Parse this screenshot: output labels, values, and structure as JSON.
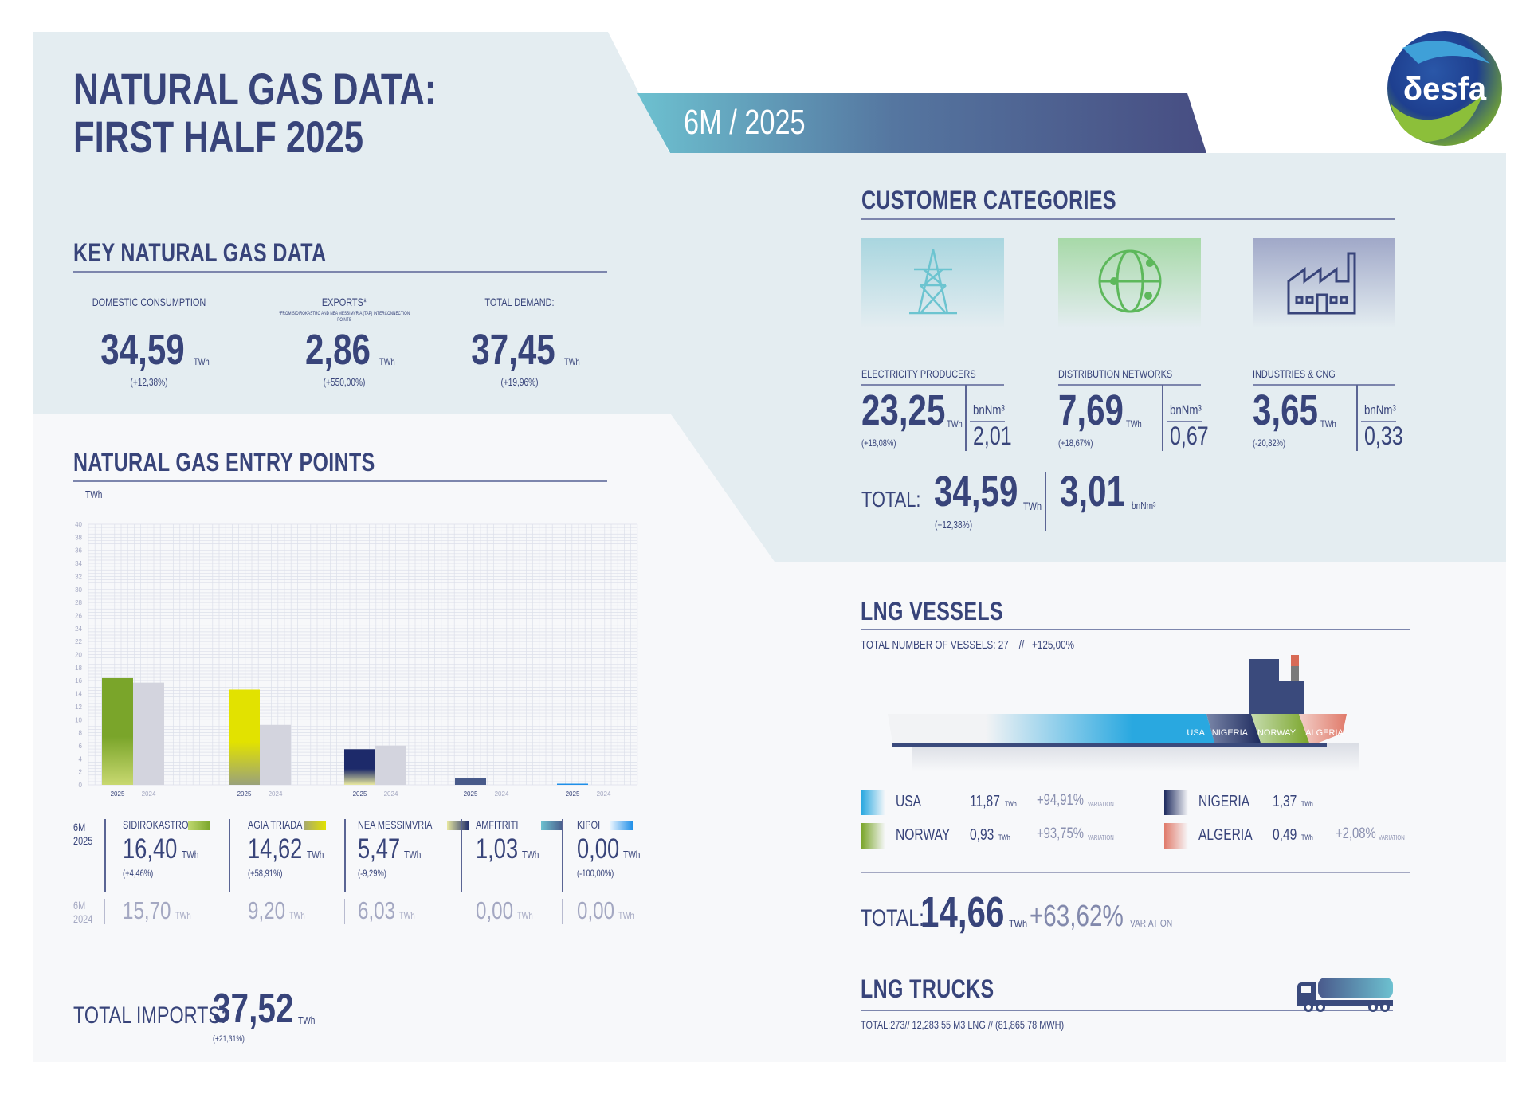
{
  "header": {
    "title_line1": "NATURAL GAS DATA:",
    "title_line2": "FIRST HALF 2025",
    "period_banner": "6M / 2025",
    "logo_text": "δesfa"
  },
  "colors": {
    "navy": "#38447a",
    "panel": "#e4edf1",
    "lower_bg": "#f7f8fa",
    "banner_start": "#6dc1d0",
    "banner_end": "#474d82",
    "sidirokastro": "#7aa52a",
    "agia_triada": "#e2e200",
    "nea_messimvria": "#1d2a6a",
    "amfitriti": "#485a8a",
    "kipoi": "#1f8fe8",
    "bar_2024": "#d3d4de",
    "usa": "#29a8e0",
    "nigeria": "#1d2a5e",
    "norway": "#7aa52a",
    "algeria": "#e07a6a"
  },
  "key_data": {
    "title": "KEY NATURAL GAS DATA",
    "items": [
      {
        "label": "DOMESTIC CONSUMPTION",
        "note": "",
        "value": "34,59",
        "unit": "TWh",
        "change": "(+12,38%)"
      },
      {
        "label": "EXPORTS*",
        "note": "*FROM SIDIROKASTRO AND NEA MESSIMVRIA (TAP) INTERCONNECTION POINTS",
        "value": "2,86",
        "unit": "TWh",
        "change": "(+550,00%)"
      },
      {
        "label": "TOTAL DEMAND:",
        "note": "",
        "value": "37,45",
        "unit": "TWh",
        "change": "(+19,96%)"
      }
    ]
  },
  "entry_points": {
    "title": "NATURAL GAS ENTRY POINTS",
    "row_2025_label": [
      "6M",
      "2025"
    ],
    "row_2024_label": [
      "6M",
      "2024"
    ],
    "points": [
      {
        "name": "SIDIROKASTRO",
        "value_2025": "16,40",
        "change": "(+4,46%)",
        "value_2024": "15,70",
        "unit": "TWh",
        "icon": "gradient-swatch"
      },
      {
        "name": "AGIA TRIADA",
        "value_2025": "14,62",
        "change": "(+58,91%)",
        "value_2024": "9,20",
        "unit": "TWh",
        "icon": "gradient-swatch"
      },
      {
        "name": "NEA MESSIMVRIA",
        "value_2025": "5,47",
        "change": "(-9,29%)",
        "value_2024": "6,03",
        "unit": "TWh",
        "icon": "gradient-swatch"
      },
      {
        "name": "AMFITRITI",
        "value_2025": "1,03",
        "change": "",
        "value_2024": "0,00",
        "unit": "TWh",
        "icon": "gradient-swatch"
      },
      {
        "name": "KIPOI",
        "value_2025": "0,00",
        "change": "(-100,00%)",
        "value_2024": "0,00",
        "unit": "TWh",
        "icon": "gradient-swatch"
      }
    ],
    "total_label": "TOTAL IMPORTS:",
    "total_value": "37,52",
    "total_unit": "TWh",
    "total_change": "(+21,31%)"
  },
  "chart_data": {
    "type": "bar",
    "title": "",
    "ylabel": "TWh",
    "xlabel": "",
    "ylim": [
      0,
      40
    ],
    "yticks": [
      0,
      2,
      4,
      6,
      8,
      10,
      12,
      14,
      16,
      18,
      20,
      22,
      24,
      26,
      28,
      30,
      32,
      34,
      36,
      38,
      40
    ],
    "grid": true,
    "categories": [
      "SIDIROKASTRO",
      "AGIA TRIADA",
      "NEA MESSIMVRIA",
      "AMFITRITI",
      "KIPOI"
    ],
    "series": [
      {
        "name": "2025",
        "values": [
          16.4,
          14.62,
          5.47,
          1.03,
          0.0
        ]
      },
      {
        "name": "2024",
        "values": [
          15.7,
          9.2,
          6.03,
          0.0,
          0.0
        ]
      }
    ]
  },
  "customer_categories": {
    "title": "CUSTOMER CATEGORIES",
    "items": [
      {
        "label": "ELECTRICITY PRODUCERS",
        "value": "23,25",
        "unit": "TWh",
        "change": "(+18,08%)",
        "vol_unit": "bnNm³",
        "vol": "2,01",
        "icon": "power-pylon-icon"
      },
      {
        "label": "DISTRIBUTION NETWORKS",
        "value": "7,69",
        "unit": "TWh",
        "change": "(+18,67%)",
        "vol_unit": "bnNm³",
        "vol": "0,67",
        "icon": "globe-network-icon"
      },
      {
        "label": "INDUSTRIES & CNG",
        "value": "3,65",
        "unit": "TWh",
        "change": "(-20,82%)",
        "vol_unit": "bnNm³",
        "vol": "0,33",
        "icon": "factory-icon"
      }
    ],
    "total_label": "TOTAL:",
    "total_value": "34,59",
    "total_unit": "TWh",
    "total_change": "(+12,38%)",
    "total_vol": "3,01",
    "total_vol_unit": "bnNm³"
  },
  "lng_vessels": {
    "title": "LNG VESSELS",
    "summary": "TOTAL NUMBER OF VESSELS: 27    //   +125,00%",
    "ship_labels": [
      "USA",
      "NIGERIA",
      "NORWAY",
      "ALGERIA"
    ],
    "origins": [
      {
        "name": "USA",
        "value": "11,87",
        "unit": "TWh",
        "variation": "+94,91%",
        "variation_label": "VARIATION"
      },
      {
        "name": "NORWAY",
        "value": "0,93",
        "unit": "TWh",
        "variation": "+93,75%",
        "variation_label": "VARIATION"
      },
      {
        "name": "NIGERIA",
        "value": "1,37",
        "unit": "TWh",
        "variation": "",
        "variation_label": ""
      },
      {
        "name": "ALGERIA",
        "value": "0,49",
        "unit": "TWh",
        "variation": "+2,08%",
        "variation_label": "VARIATION"
      }
    ],
    "total_label": "TOTAL:",
    "total_value": "14,66",
    "total_unit": "TWh",
    "total_variation": "+63,62%",
    "total_variation_label": "VARIATION"
  },
  "lng_trucks": {
    "title": "LNG TRUCKS",
    "summary": "TOTAL:273// 12,283.55 M3 LNG // (81,865.78 MWH)"
  }
}
